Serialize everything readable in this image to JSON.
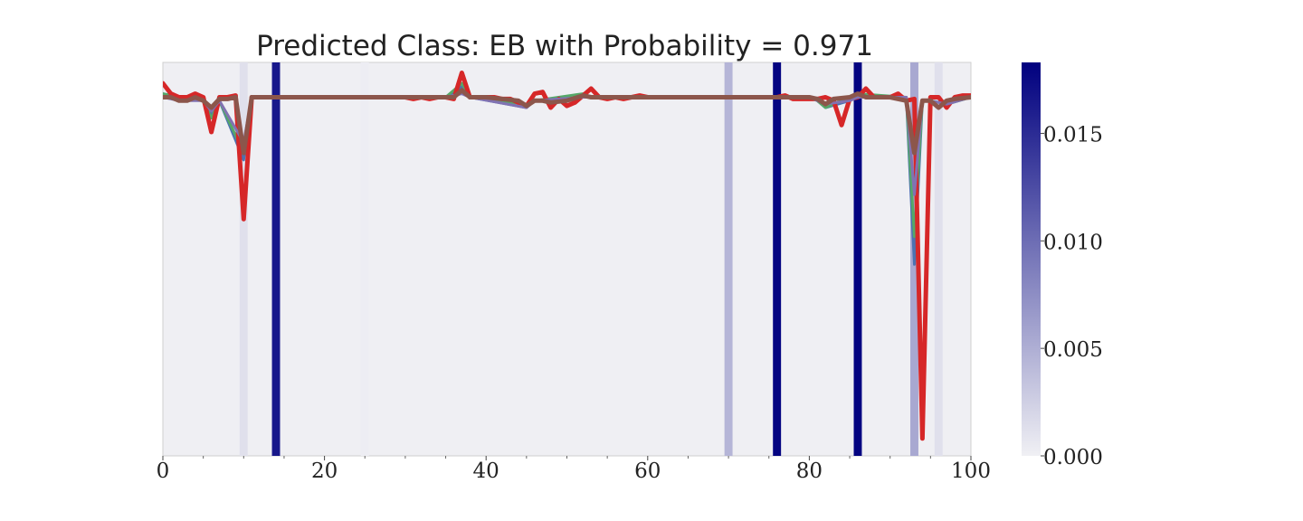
{
  "chart_data": {
    "type": "line",
    "title": "Predicted Class: EB with Probability = 0.971",
    "xlabel": "",
    "ylabel": "",
    "xlim": [
      0,
      100
    ],
    "ylim": [
      -0.05,
      1.08
    ],
    "grid": false,
    "x_ticks": [
      "0",
      "20",
      "40",
      "60",
      "80",
      "100"
    ],
    "x_tick_values": [
      0,
      20,
      40,
      60,
      80,
      100
    ],
    "x_minor_tick_values": [
      5,
      10,
      15,
      25,
      30,
      35,
      45,
      50,
      55,
      65,
      70,
      75,
      85,
      90,
      95
    ],
    "colorbar": {
      "min": 0.0,
      "max": 0.0183,
      "ticks": [
        "0.000",
        "0.005",
        "0.010",
        "0.015"
      ],
      "tick_values": [
        0.0,
        0.005,
        0.01,
        0.015
      ],
      "low_color": "#f0f0f4",
      "high_color": "#00007f"
    },
    "attribution": [
      {
        "x": 10,
        "value": 0.0012
      },
      {
        "x": 14,
        "value": 0.0165
      },
      {
        "x": 25,
        "value": 0.0002
      },
      {
        "x": 70,
        "value": 0.0045
      },
      {
        "x": 76,
        "value": 0.018
      },
      {
        "x": 86,
        "value": 0.018
      },
      {
        "x": 93,
        "value": 0.0055
      },
      {
        "x": 96,
        "value": 0.0012
      }
    ],
    "series": [
      {
        "name": "series-blue",
        "color": "#4c72b0",
        "width": 3,
        "x": [
          0,
          2,
          5,
          6,
          7,
          10,
          11,
          20,
          35,
          37,
          38,
          45,
          46,
          52,
          53,
          60,
          80,
          81,
          82,
          85,
          86,
          92,
          93,
          94,
          95,
          97,
          100
        ],
        "values": [
          0.99,
          0.98,
          0.97,
          0.93,
          0.97,
          0.8,
          0.98,
          0.98,
          0.98,
          1.01,
          0.98,
          0.95,
          0.97,
          0.98,
          0.98,
          0.98,
          0.98,
          0.97,
          0.95,
          0.97,
          0.98,
          0.98,
          0.5,
          0.97,
          0.97,
          0.96,
          0.98
        ]
      },
      {
        "name": "series-green",
        "color": "#55a868",
        "width": 3,
        "x": [
          0,
          2,
          5,
          6,
          7,
          10,
          11,
          20,
          35,
          37,
          38,
          45,
          46,
          52,
          53,
          60,
          80,
          81,
          82,
          85,
          86,
          92,
          93,
          94,
          95,
          97,
          100
        ],
        "values": [
          0.99,
          0.98,
          0.97,
          0.92,
          0.97,
          0.82,
          0.98,
          0.98,
          0.98,
          1.02,
          0.98,
          0.96,
          0.97,
          0.99,
          0.98,
          0.98,
          0.98,
          0.97,
          0.95,
          0.98,
          0.99,
          0.98,
          0.58,
          0.97,
          0.97,
          0.96,
          0.98
        ]
      },
      {
        "name": "series-red",
        "color": "#d62728",
        "width": 5,
        "x": [
          0,
          1,
          2,
          3,
          4,
          5,
          6,
          7,
          8,
          9,
          10,
          11,
          12,
          20,
          30,
          31,
          32,
          33,
          34,
          35,
          36,
          37,
          38,
          39,
          40,
          41,
          42,
          43,
          44,
          45,
          46,
          47,
          48,
          49,
          50,
          51,
          52,
          53,
          54,
          55,
          56,
          57,
          58,
          59,
          60,
          70,
          75,
          76,
          77,
          78,
          79,
          80,
          81,
          82,
          83,
          84,
          85,
          86,
          87,
          88,
          89,
          90,
          91,
          92,
          93,
          94,
          95,
          96,
          97,
          98,
          99,
          100
        ],
        "values": [
          1.02,
          0.99,
          0.98,
          0.98,
          0.99,
          0.98,
          0.88,
          0.98,
          0.98,
          0.985,
          0.63,
          0.98,
          0.98,
          0.98,
          0.98,
          0.975,
          0.98,
          0.975,
          0.98,
          0.98,
          0.975,
          1.05,
          0.98,
          0.98,
          0.98,
          0.98,
          0.975,
          0.975,
          0.965,
          0.955,
          0.99,
          0.995,
          0.95,
          0.975,
          0.955,
          0.965,
          0.985,
          1.005,
          0.98,
          0.975,
          0.98,
          0.975,
          0.98,
          0.985,
          0.98,
          0.98,
          0.98,
          0.98,
          0.985,
          0.975,
          0.975,
          0.975,
          0.975,
          0.98,
          0.97,
          0.9,
          0.975,
          0.98,
          1.005,
          0.98,
          0.98,
          0.98,
          0.99,
          0.97,
          0.975,
          0.0,
          0.98,
          0.98,
          0.95,
          0.98,
          0.985,
          0.985
        ]
      },
      {
        "name": "series-purple",
        "color": "#8172b2",
        "width": 3,
        "x": [
          0,
          2,
          5,
          6,
          7,
          10,
          11,
          20,
          35,
          37,
          38,
          45,
          46,
          52,
          53,
          60,
          80,
          81,
          82,
          85,
          86,
          92,
          93,
          94,
          95,
          97,
          100
        ],
        "values": [
          0.98,
          0.97,
          0.97,
          0.94,
          0.97,
          0.85,
          0.98,
          0.98,
          0.98,
          0.99,
          0.98,
          0.95,
          0.97,
          0.98,
          0.98,
          0.98,
          0.98,
          0.97,
          0.96,
          0.97,
          0.98,
          0.98,
          0.7,
          0.97,
          0.97,
          0.96,
          0.98
        ]
      },
      {
        "name": "series-brown",
        "color": "#8c564b",
        "width": 5,
        "x": [
          0,
          1,
          2,
          3,
          4,
          5,
          6,
          7,
          8,
          9,
          10,
          11,
          20,
          30,
          35,
          36,
          37,
          38,
          40,
          44,
          45,
          46,
          47,
          48,
          50,
          52,
          53,
          60,
          80,
          81,
          82,
          83,
          85,
          86,
          87,
          90,
          91,
          92,
          93,
          94,
          95,
          96,
          97,
          98,
          100
        ],
        "values": [
          0.98,
          0.98,
          0.97,
          0.97,
          0.98,
          0.97,
          0.95,
          0.975,
          0.975,
          0.98,
          0.82,
          0.98,
          0.98,
          0.98,
          0.98,
          0.98,
          1.0,
          0.98,
          0.98,
          0.97,
          0.955,
          0.97,
          0.97,
          0.965,
          0.97,
          0.985,
          0.98,
          0.98,
          0.98,
          0.975,
          0.96,
          0.975,
          0.98,
          0.99,
          0.98,
          0.98,
          0.975,
          0.97,
          0.82,
          0.97,
          0.97,
          0.95,
          0.97,
          0.975,
          0.98
        ]
      }
    ]
  }
}
